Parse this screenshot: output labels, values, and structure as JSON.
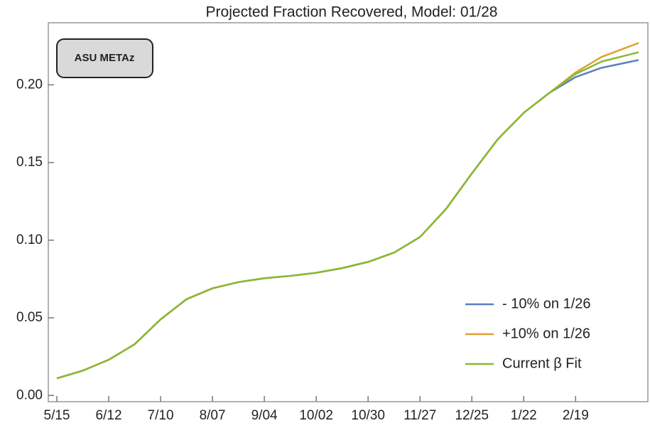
{
  "chart_data": {
    "type": "line",
    "title": "Projected Fraction Recovered, Model: 01/28",
    "annotations": [
      "ASU METAz"
    ],
    "x": [
      0,
      14,
      28,
      42,
      56,
      70,
      84,
      98,
      112,
      126,
      140,
      154,
      168,
      182,
      196,
      210,
      224,
      238,
      252,
      266,
      280,
      294,
      314
    ],
    "series": [
      {
        "name": "- 10% on 1/26",
        "color": "#5b7fc0",
        "values": [
          0.011,
          0.016,
          0.023,
          0.033,
          0.049,
          0.062,
          0.069,
          0.073,
          0.0755,
          0.077,
          0.079,
          0.082,
          0.086,
          0.092,
          0.102,
          0.12,
          0.143,
          0.165,
          0.182,
          0.195,
          0.205,
          0.211,
          0.216
        ]
      },
      {
        "name": "+10% on 1/26",
        "color": "#e0a030",
        "values": [
          0.011,
          0.016,
          0.023,
          0.033,
          0.049,
          0.062,
          0.069,
          0.073,
          0.0755,
          0.077,
          0.079,
          0.082,
          0.086,
          0.092,
          0.102,
          0.12,
          0.143,
          0.165,
          0.182,
          0.195,
          0.208,
          0.218,
          0.227
        ]
      },
      {
        "name": "Current β Fit",
        "color": "#8ab833",
        "values": [
          0.011,
          0.016,
          0.023,
          0.033,
          0.049,
          0.062,
          0.069,
          0.073,
          0.0755,
          0.077,
          0.079,
          0.082,
          0.086,
          0.092,
          0.102,
          0.12,
          0.143,
          0.165,
          0.182,
          0.195,
          0.207,
          0.215,
          0.221
        ]
      }
    ],
    "xlim": [
      -4.6,
      319
    ],
    "xticks": [
      {
        "value": 0,
        "label": "5/15"
      },
      {
        "value": 28,
        "label": "6/12"
      },
      {
        "value": 56,
        "label": "7/10"
      },
      {
        "value": 84,
        "label": "8/07"
      },
      {
        "value": 112,
        "label": "9/04"
      },
      {
        "value": 140,
        "label": "10/02"
      },
      {
        "value": 168,
        "label": "10/30"
      },
      {
        "value": 196,
        "label": "11/27"
      },
      {
        "value": 224,
        "label": "12/25"
      },
      {
        "value": 252,
        "label": "1/22"
      },
      {
        "value": 280,
        "label": "2/19"
      }
    ],
    "ylim": [
      -0.004,
      0.24
    ],
    "yticks": [
      {
        "value": 0,
        "label": "0.00"
      },
      {
        "value": 0.05,
        "label": "0.05"
      },
      {
        "value": 0.1,
        "label": "0.10"
      },
      {
        "value": 0.15,
        "label": "0.15"
      },
      {
        "value": 0.2,
        "label": "0.20"
      }
    ],
    "legend": "lower right"
  }
}
